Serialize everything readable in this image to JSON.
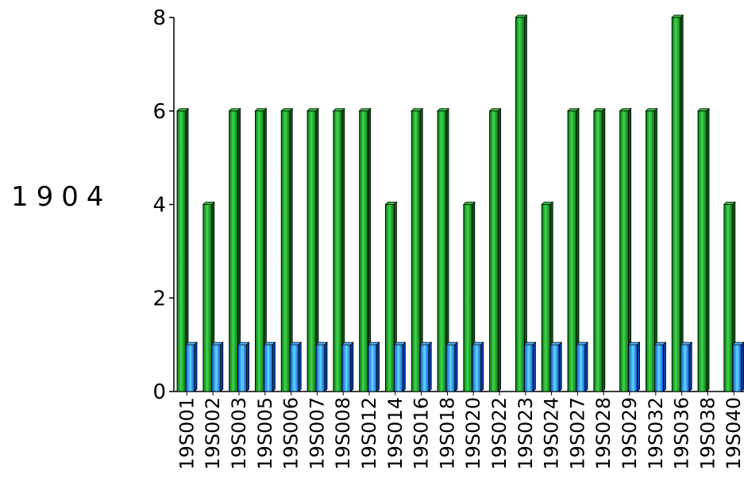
{
  "side_label": "1904",
  "chart_data": {
    "type": "bar",
    "categories": [
      "19S001",
      "19S002",
      "19S003",
      "19S005",
      "19S006",
      "19S007",
      "19S008",
      "19S012",
      "19S014",
      "19S016",
      "19S018",
      "19S020",
      "19S022",
      "19S023",
      "19S024",
      "19S027",
      "19S028",
      "19S029",
      "19S032",
      "19S036",
      "19S038",
      "19S040"
    ],
    "series": [
      {
        "color": "#1f9e2a",
        "values": [
          6,
          4,
          6,
          6,
          6,
          6,
          6,
          6,
          4,
          6,
          6,
          4,
          6,
          8,
          4,
          6,
          6,
          6,
          6,
          8,
          6,
          4
        ]
      },
      {
        "color": "#1e90ff",
        "values": [
          1,
          1,
          1,
          1,
          1,
          1,
          1,
          1,
          1,
          1,
          1,
          1,
          0,
          1,
          1,
          1,
          0,
          1,
          1,
          1,
          0,
          1
        ]
      }
    ],
    "yticks": [
      0,
      2,
      4,
      6,
      8
    ],
    "ylim": [
      0,
      8
    ],
    "title": "",
    "xlabel": "",
    "ylabel": ""
  }
}
